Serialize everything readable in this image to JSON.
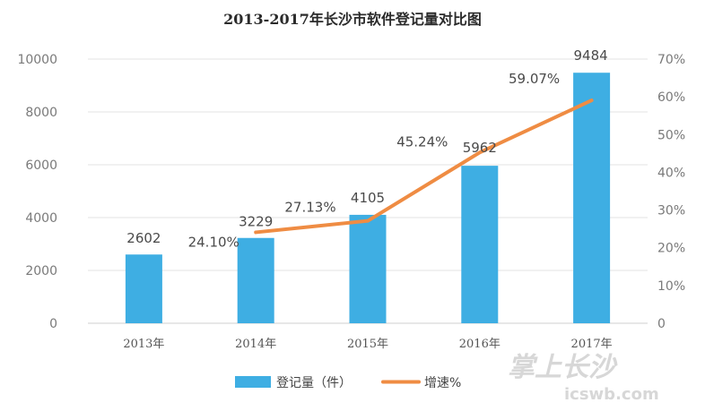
{
  "chart_data": {
    "type": "bar",
    "title": "2013-2017年长沙市软件登记量对比图",
    "categories": [
      "2013年",
      "2014年",
      "2015年",
      "2016年",
      "2017年"
    ],
    "series": [
      {
        "name": "登记量（件）",
        "kind": "bar",
        "axis": "left",
        "color": "#3eaee3",
        "values": [
          2602,
          3229,
          4105,
          5962,
          9484
        ],
        "labels": [
          "2602",
          "3229",
          "4105",
          "5962",
          "9484"
        ]
      },
      {
        "name": "增速%",
        "kind": "line",
        "axis": "right",
        "color": "#ef8c43",
        "values": [
          null,
          24.1,
          27.13,
          45.24,
          59.07
        ],
        "labels": [
          "",
          "24.10%",
          "27.13%",
          "45.24%",
          "59.07%"
        ]
      }
    ],
    "y_left": {
      "min": 0,
      "max": 10000,
      "ticks": [
        "0",
        "2000",
        "4000",
        "6000",
        "8000",
        "10000"
      ]
    },
    "y_right": {
      "min": 0,
      "max": 70,
      "ticks": [
        "0",
        "10%",
        "20%",
        "30%",
        "40%",
        "50%",
        "60%",
        "70%"
      ]
    },
    "grid": true,
    "legend_position": "bottom"
  },
  "watermark": {
    "brand": "掌上长沙",
    "site": "icswb.com"
  }
}
